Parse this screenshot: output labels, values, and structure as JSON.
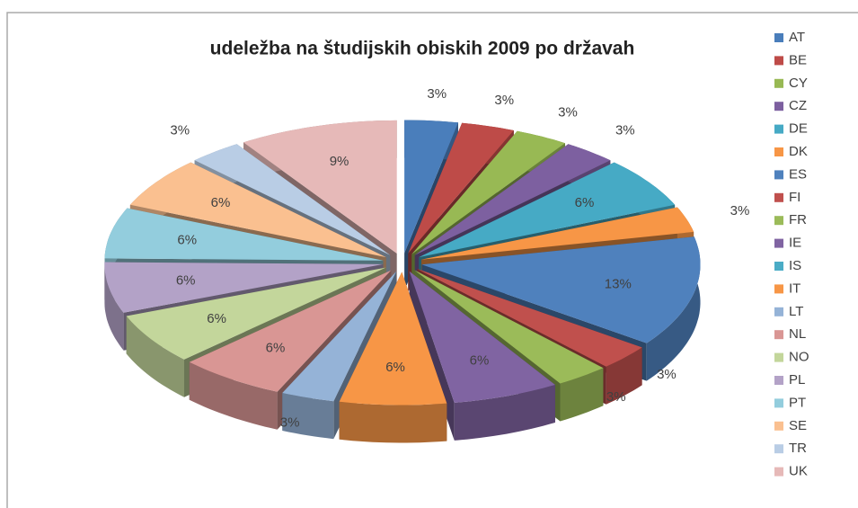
{
  "chart_data": {
    "type": "pie3d",
    "title": "udeležba na študijskih obiskih 2009 po državah",
    "categories": [
      "AT",
      "BE",
      "CY",
      "CZ",
      "DE",
      "DK",
      "ES",
      "FI",
      "FR",
      "IE",
      "IS",
      "IT",
      "LT",
      "NL",
      "NO",
      "PL",
      "PT",
      "SE",
      "TR",
      "UK"
    ],
    "values": [
      3,
      3,
      3,
      3,
      6,
      3,
      13,
      3,
      3,
      6,
      0,
      6,
      3,
      6,
      6,
      6,
      6,
      6,
      3,
      9
    ],
    "value_labels": [
      "3%",
      "3%",
      "3%",
      "3%",
      "6%",
      "3%",
      "13%",
      "3%",
      "3%",
      "6%",
      null,
      "6%",
      "3%",
      "6%",
      "6%",
      "6%",
      "6%",
      "6%",
      "3%",
      "9%"
    ],
    "colors": [
      "#4a7ebb",
      "#be4b48",
      "#98b954",
      "#7d60a0",
      "#46aac5",
      "#f79646",
      "#4f81bd",
      "#c0504d",
      "#9bbb59",
      "#8064a2",
      "#4bacc6",
      "#f79646",
      "#95b3d7",
      "#d99694",
      "#c3d69b",
      "#b3a2c7",
      "#93cddd",
      "#fac090",
      "#b9cde5",
      "#e6b9b8"
    ],
    "legend": "right"
  }
}
